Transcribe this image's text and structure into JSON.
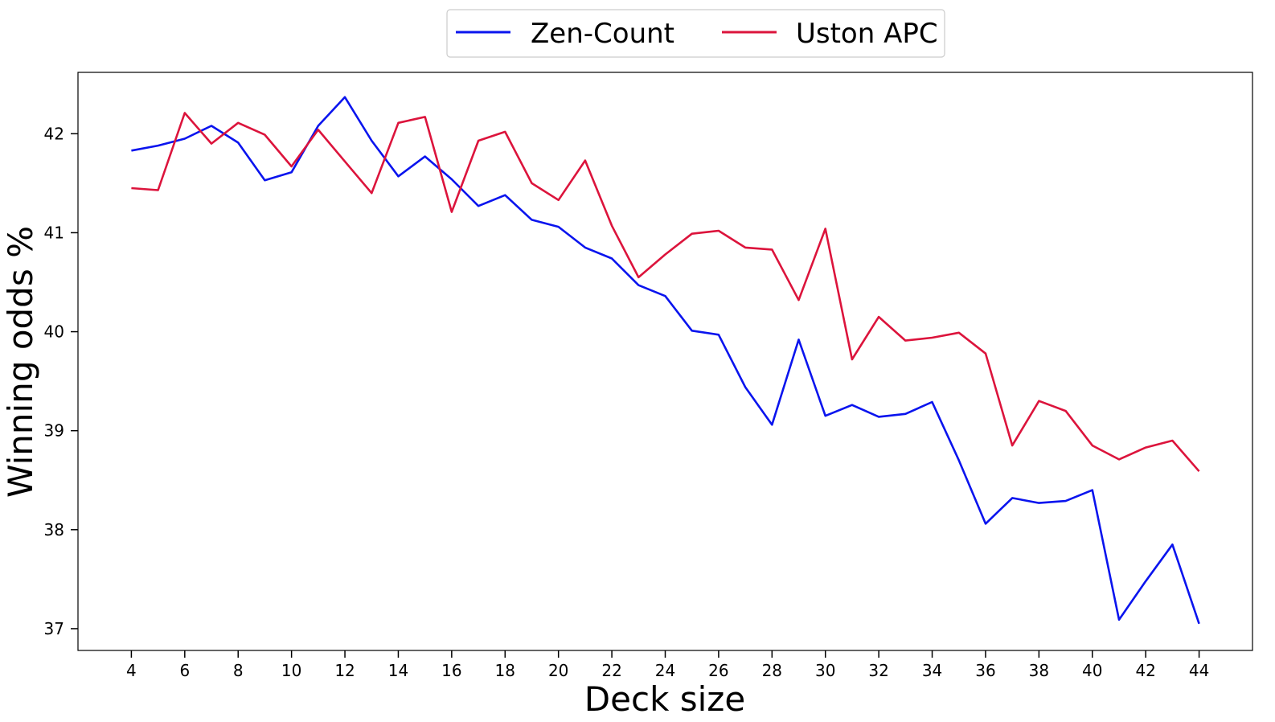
{
  "chart_data": {
    "type": "line",
    "xlabel": "Deck size",
    "ylabel": "Winning odds %",
    "xlim": [
      2,
      46
    ],
    "ylim": [
      36.78,
      42.62
    ],
    "xticks": [
      4,
      6,
      8,
      10,
      12,
      14,
      16,
      18,
      20,
      22,
      24,
      26,
      28,
      30,
      32,
      34,
      36,
      38,
      40,
      42,
      44
    ],
    "yticks": [
      37,
      38,
      39,
      40,
      41,
      42
    ],
    "grid": false,
    "legend_position": "top-center",
    "x": [
      4,
      5,
      6,
      7,
      8,
      9,
      10,
      11,
      12,
      13,
      14,
      15,
      16,
      17,
      18,
      19,
      20,
      21,
      22,
      23,
      24,
      25,
      26,
      27,
      28,
      29,
      30,
      31,
      32,
      33,
      34,
      35,
      36,
      37,
      38,
      39,
      40,
      41,
      42,
      43,
      44
    ],
    "series": [
      {
        "name": "Zen-Count",
        "color": "#0a14ee",
        "values": [
          41.83,
          41.88,
          41.95,
          42.08,
          41.91,
          41.53,
          41.61,
          42.08,
          42.37,
          41.93,
          41.57,
          41.77,
          41.54,
          41.27,
          41.38,
          41.13,
          41.06,
          40.85,
          40.74,
          40.47,
          40.36,
          40.01,
          39.97,
          39.44,
          39.06,
          39.92,
          39.15,
          39.26,
          39.14,
          39.17,
          39.29,
          38.7,
          38.06,
          38.32,
          38.27,
          38.29,
          38.4,
          37.09,
          37.48,
          37.85,
          37.05
        ]
      },
      {
        "name": "Uston APC",
        "color": "#dc143c",
        "values": [
          41.45,
          41.43,
          42.21,
          41.9,
          42.11,
          41.99,
          41.67,
          42.04,
          41.72,
          41.4,
          42.11,
          42.17,
          41.21,
          41.93,
          42.02,
          41.5,
          41.33,
          41.73,
          41.07,
          40.55,
          40.78,
          40.99,
          41.02,
          40.85,
          40.83,
          40.32,
          41.04,
          39.72,
          40.15,
          39.91,
          39.94,
          39.99,
          39.78,
          38.85,
          39.3,
          39.2,
          38.85,
          38.71,
          38.83,
          38.9,
          38.59
        ]
      }
    ]
  }
}
